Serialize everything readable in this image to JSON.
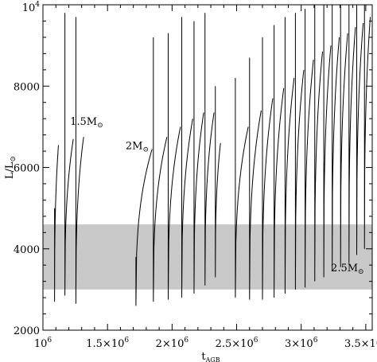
{
  "chart_data": {
    "type": "line",
    "xlabel": "t",
    "xlabel_sub": "AGB",
    "ylabel": "L/L",
    "ylabel_sub": "⊙",
    "xlim": [
      1000000,
      3550000
    ],
    "ylim": [
      2000,
      10000
    ],
    "x_ticks": [
      {
        "value": 1000000,
        "mant": "",
        "exp": "6",
        "base": "10"
      },
      {
        "value": 1500000,
        "mant": "1.5×",
        "exp": "6",
        "base": "10"
      },
      {
        "value": 2000000,
        "mant": "2×",
        "exp": "6",
        "base": "10"
      },
      {
        "value": 2500000,
        "mant": "2.5×",
        "exp": "6",
        "base": "10"
      },
      {
        "value": 3000000,
        "mant": "3×",
        "exp": "6",
        "base": "10"
      },
      {
        "value": 3500000,
        "mant": "3.5×",
        "exp": "6",
        "base": "10"
      }
    ],
    "y_ticks": [
      {
        "value": 2000,
        "label": "2000"
      },
      {
        "value": 4000,
        "label": "4000"
      },
      {
        "value": 6000,
        "label": "6000"
      },
      {
        "value": 8000,
        "label": "8000"
      },
      {
        "value": 10000,
        "label": "",
        "base": "10",
        "exp": "4"
      }
    ],
    "band": {
      "y_min": 3000,
      "y_max": 4600,
      "color": "#c8c8c8"
    },
    "annotations": [
      {
        "text": "1.5M",
        "sub": "⊙",
        "x": 1210000,
        "y": 7050
      },
      {
        "text": "2M",
        "sub": "⊙",
        "x": 1640000,
        "y": 6450
      },
      {
        "text": "2.5M",
        "sub": "⊙",
        "x": 3230000,
        "y": 3450
      }
    ],
    "series": [
      {
        "pulses": [
          {
            "start": 1090000,
            "end": 1120000,
            "low": 2700,
            "high": 6550,
            "spike": 5000
          },
          {
            "start": 1170000,
            "end": 1235000,
            "low": 2850,
            "high": 6700,
            "spike": 9800
          },
          {
            "start": 1255000,
            "end": 1315000,
            "low": 2650,
            "high": 6750,
            "spike": 9700
          }
        ]
      },
      {
        "pulses": [
          {
            "start": 1720000,
            "end": 1845000,
            "low": 2600,
            "high": 6450,
            "spike": 3800
          },
          {
            "start": 1855000,
            "end": 1960000,
            "low": 2700,
            "high": 6750,
            "spike": 9200
          },
          {
            "start": 1970000,
            "end": 2065000,
            "low": 2750,
            "high": 7000,
            "spike": 9300
          },
          {
            "start": 2075000,
            "end": 2160000,
            "low": 2800,
            "high": 7200,
            "spike": 9700
          },
          {
            "start": 2170000,
            "end": 2245000,
            "low": 2900,
            "high": 7350,
            "spike": 9600
          },
          {
            "start": 2255000,
            "end": 2325000,
            "low": 3100,
            "high": 7350,
            "spike": 9800
          },
          {
            "start": 2335000,
            "end": 2375000,
            "low": 3300,
            "high": 6600,
            "spike": 8000
          }
        ]
      },
      {
        "pulses": [
          {
            "start": 2490000,
            "end": 2590000,
            "low": 2800,
            "high": 7000,
            "spike": 8200
          },
          {
            "start": 2600000,
            "end": 2690000,
            "low": 2750,
            "high": 7400,
            "spike": 8700
          },
          {
            "start": 2700000,
            "end": 2780000,
            "low": 2750,
            "high": 7700,
            "spike": 9200
          },
          {
            "start": 2790000,
            "end": 2865000,
            "low": 2800,
            "high": 7950,
            "spike": 9500
          },
          {
            "start": 2875000,
            "end": 2945000,
            "low": 2900,
            "high": 8200,
            "spike": 9700
          },
          {
            "start": 2955000,
            "end": 3020000,
            "low": 3000,
            "high": 8400,
            "spike": 9800
          },
          {
            "start": 3030000,
            "end": 3095000,
            "low": 3050,
            "high": 8650,
            "spike": 9900
          },
          {
            "start": 3105000,
            "end": 3165000,
            "low": 3200,
            "high": 8850,
            "spike": 10000
          },
          {
            "start": 3175000,
            "end": 3230000,
            "low": 3300,
            "high": 9000,
            "spike": 10000
          },
          {
            "start": 3240000,
            "end": 3295000,
            "low": 3450,
            "high": 9200,
            "spike": 10000
          },
          {
            "start": 3305000,
            "end": 3360000,
            "low": 3550,
            "high": 9300,
            "spike": 10000
          },
          {
            "start": 3370000,
            "end": 3420000,
            "low": 3650,
            "high": 9450,
            "spike": 10000
          },
          {
            "start": 3430000,
            "end": 3480000,
            "low": 3850,
            "high": 9550,
            "spike": 10000
          },
          {
            "start": 3490000,
            "end": 3535000,
            "low": 4000,
            "high": 9700,
            "spike": 10000
          }
        ]
      }
    ]
  }
}
